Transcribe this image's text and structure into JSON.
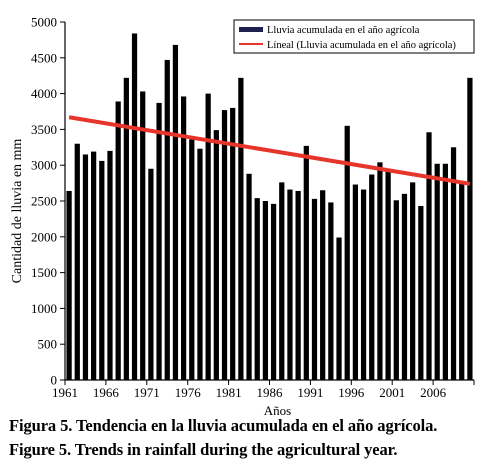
{
  "chart_data": {
    "type": "bar",
    "xlabel": "Años",
    "ylabel": "Cantidad de lluvia en mm",
    "ylim": [
      0,
      5000
    ],
    "yticks": [
      "0",
      "500",
      "1000",
      "1500",
      "2000",
      "2500",
      "3000",
      "3500",
      "4000",
      "4500",
      "5000"
    ],
    "xticks": [
      "1961",
      "1966",
      "1971",
      "1976",
      "1981",
      "1986",
      "1991",
      "1996",
      "2001",
      "2006"
    ],
    "legend_position": "top-right",
    "bar_color": "#000000",
    "trend_color": "#e8352b",
    "series": [
      {
        "name": "Lluvia acumulada en el año agrícola",
        "x": [
          1961,
          1962,
          1963,
          1964,
          1965,
          1966,
          1967,
          1968,
          1969,
          1970,
          1971,
          1972,
          1973,
          1974,
          1975,
          1976,
          1977,
          1978,
          1979,
          1980,
          1981,
          1982,
          1983,
          1984,
          1985,
          1986,
          1987,
          1988,
          1989,
          1990,
          1991,
          1992,
          1993,
          1994,
          1995,
          1996,
          1997,
          1998,
          1999,
          2000,
          2001,
          2002,
          2003,
          2004,
          2005,
          2006,
          2007,
          2008,
          2009,
          2010
        ],
        "values": [
          2640,
          3300,
          3150,
          3190,
          3060,
          3200,
          3890,
          4220,
          4840,
          4030,
          2950,
          3870,
          4470,
          4680,
          3960,
          3360,
          3230,
          4000,
          3490,
          3770,
          3800,
          4220,
          2880,
          2540,
          2500,
          2460,
          2760,
          2660,
          2640,
          3270,
          2530,
          2650,
          2480,
          1990,
          3550,
          2730,
          2660,
          2870,
          3040,
          2950,
          2510,
          2600,
          2760,
          2430,
          3460,
          3020,
          3020,
          3250,
          2780,
          4220
        ]
      },
      {
        "name": "Líneal (Lluvia acumulada en el año agrícola)",
        "type": "line",
        "x": [
          1961,
          2010
        ],
        "values": [
          3670,
          2740
        ]
      }
    ]
  },
  "caption": {
    "line1": "Figura 5. Tendencia en la lluvia acumulada en el año agrícola.",
    "line2": "Figure 5. Trends in rainfall during the agricultural year."
  }
}
